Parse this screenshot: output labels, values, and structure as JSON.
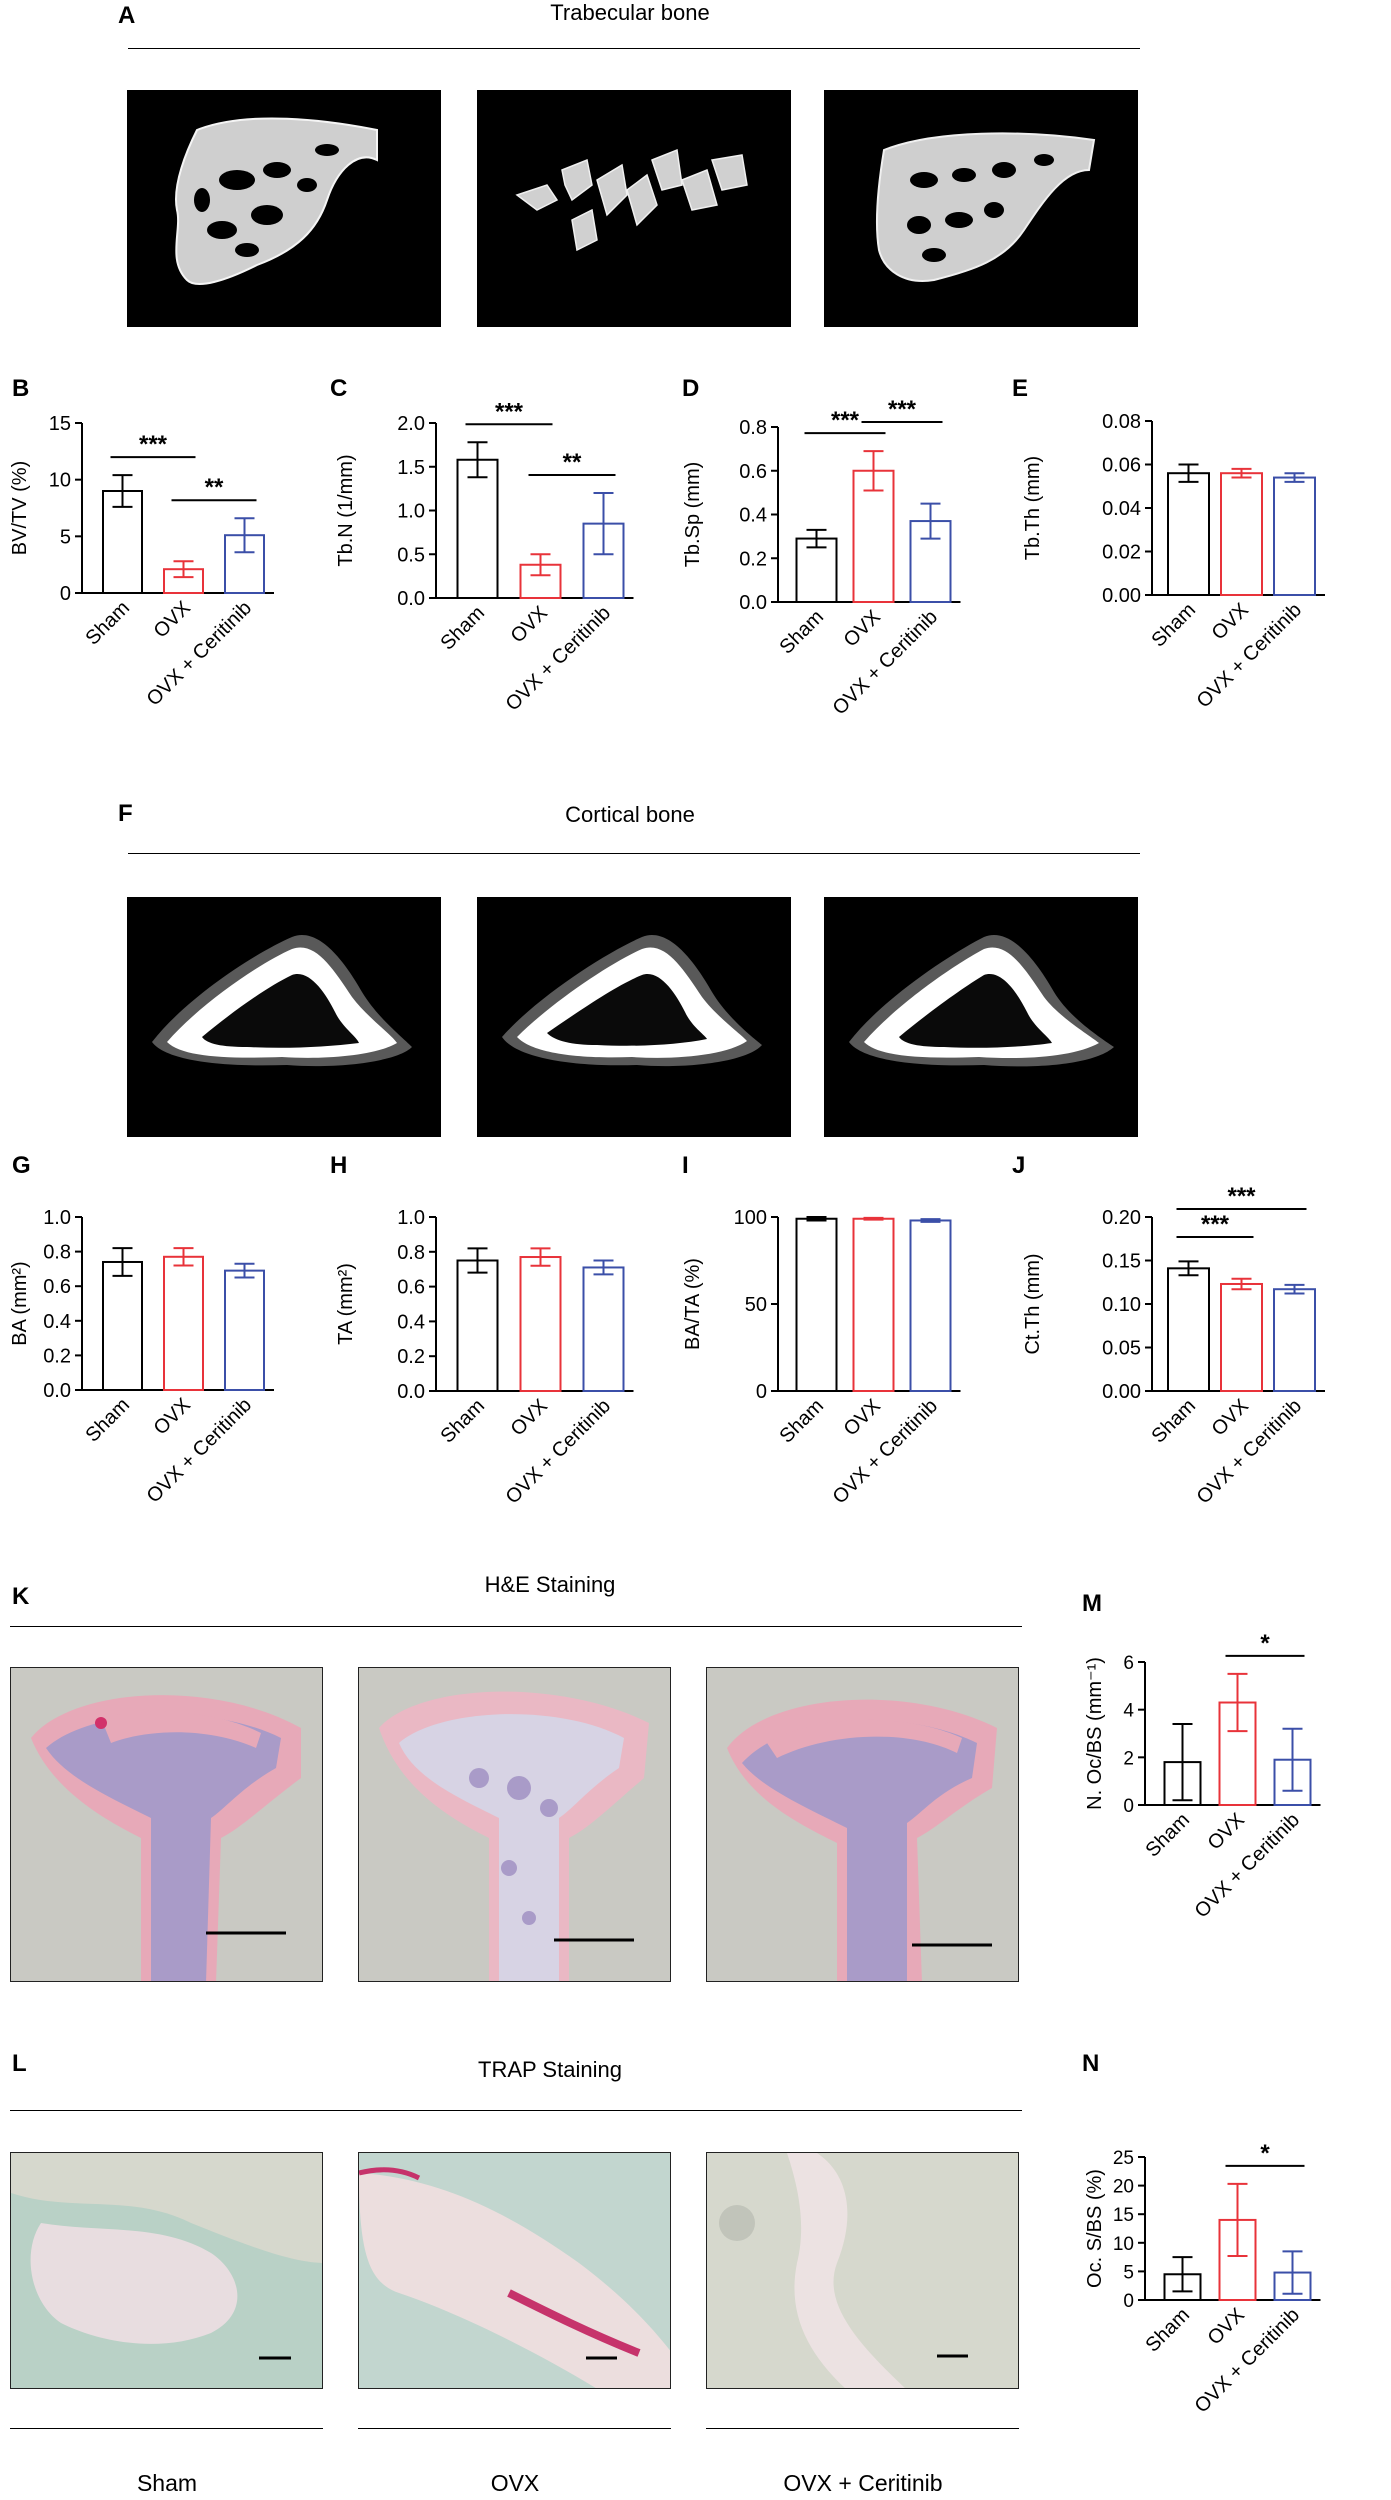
{
  "panels": {
    "A": "A",
    "B": "B",
    "C": "C",
    "D": "D",
    "E": "E",
    "F": "F",
    "G": "G",
    "H": "H",
    "I": "I",
    "J": "J",
    "K": "K",
    "L": "L",
    "M": "M",
    "N": "N"
  },
  "sections": {
    "trabecular": "Trabecular bone",
    "cortical": "Cortical bone",
    "he": "H&E Staining",
    "trap": "TRAP Staining"
  },
  "groups": [
    "Sham",
    "OVX",
    "OVX + Ceritinib"
  ],
  "colors": {
    "sham": "#000000",
    "ovx": "#e8333a",
    "ceritinib": "#3b4fa8"
  },
  "icons": {
    "trabecular_images": "micro-ct-trabecular-render",
    "cortical_images": "micro-ct-cortical-cross-section",
    "he_images": "he-stained-femur-section",
    "trap_images": "trap-stained-bone-section",
    "scale_bar": "scale-bar"
  },
  "chart_data": [
    {
      "id": "B",
      "type": "bar",
      "ylabel": "BV/TV (%)",
      "ylim": [
        0,
        15
      ],
      "yticks": [
        "0",
        "5",
        "10",
        "15"
      ],
      "categories": [
        "Sham",
        "OVX",
        "OVX + Ceritinib"
      ],
      "values": [
        9.0,
        2.1,
        5.1
      ],
      "errors": [
        1.4,
        0.7,
        1.5
      ],
      "significance": [
        {
          "from": 0,
          "to": 1,
          "label": "***"
        },
        {
          "from": 1,
          "to": 2,
          "label": "**"
        }
      ]
    },
    {
      "id": "C",
      "type": "bar",
      "ylabel": "Tb.N (1/mm)",
      "ylim": [
        0,
        2.0
      ],
      "yticks": [
        "0.0",
        "0.5",
        "1.0",
        "1.5",
        "2.0"
      ],
      "categories": [
        "Sham",
        "OVX",
        "OVX + Ceritinib"
      ],
      "values": [
        1.58,
        0.38,
        0.85
      ],
      "errors": [
        0.2,
        0.12,
        0.35
      ],
      "significance": [
        {
          "from": 0,
          "to": 1,
          "label": "***"
        },
        {
          "from": 1,
          "to": 2,
          "label": "**"
        }
      ]
    },
    {
      "id": "D",
      "type": "bar",
      "ylabel": "Tb.Sp (mm)",
      "ylim": [
        0,
        0.8
      ],
      "yticks": [
        "0.0",
        "0.2",
        "0.4",
        "0.6",
        "0.8"
      ],
      "categories": [
        "Sham",
        "OVX",
        "OVX + Ceritinib"
      ],
      "values": [
        0.29,
        0.6,
        0.37
      ],
      "errors": [
        0.04,
        0.09,
        0.08
      ],
      "significance": [
        {
          "from": 0,
          "to": 1,
          "label": "***"
        },
        {
          "from": 1,
          "to": 2,
          "label": "***"
        }
      ]
    },
    {
      "id": "E",
      "type": "bar",
      "ylabel": "Tb.Th (mm)",
      "ylim": [
        0,
        0.08
      ],
      "yticks": [
        "0.00",
        "0.02",
        "0.04",
        "0.06",
        "0.08"
      ],
      "categories": [
        "Sham",
        "OVX",
        "OVX + Ceritinib"
      ],
      "values": [
        0.056,
        0.056,
        0.054
      ],
      "errors": [
        0.004,
        0.002,
        0.002
      ],
      "significance": []
    },
    {
      "id": "G",
      "type": "bar",
      "ylabel": "BA (mm²)",
      "ylim": [
        0,
        1.0
      ],
      "yticks": [
        "0.0",
        "0.2",
        "0.4",
        "0.6",
        "0.8",
        "1.0"
      ],
      "categories": [
        "Sham",
        "OVX",
        "OVX + Ceritinib"
      ],
      "values": [
        0.74,
        0.77,
        0.69
      ],
      "errors": [
        0.08,
        0.05,
        0.04
      ],
      "significance": []
    },
    {
      "id": "H",
      "type": "bar",
      "ylabel": "TA (mm²)",
      "ylim": [
        0,
        1.0
      ],
      "yticks": [
        "0.0",
        "0.2",
        "0.4",
        "0.6",
        "0.8",
        "1.0"
      ],
      "categories": [
        "Sham",
        "OVX",
        "OVX + Ceritinib"
      ],
      "values": [
        0.75,
        0.77,
        0.71
      ],
      "errors": [
        0.07,
        0.05,
        0.04
      ],
      "significance": []
    },
    {
      "id": "I",
      "type": "bar",
      "ylabel": "BA/TA (%)",
      "ylim": [
        0,
        100
      ],
      "yticks": [
        "0",
        "50",
        "100"
      ],
      "categories": [
        "Sham",
        "OVX",
        "OVX + Ceritinib"
      ],
      "values": [
        99,
        99,
        98
      ],
      "errors": [
        1,
        0.5,
        0.8
      ],
      "significance": []
    },
    {
      "id": "J",
      "type": "bar",
      "ylabel": "Ct.Th (mm)",
      "ylim": [
        0,
        0.2
      ],
      "yticks": [
        "0.00",
        "0.05",
        "0.10",
        "0.15",
        "0.20"
      ],
      "categories": [
        "Sham",
        "OVX",
        "OVX + Ceritinib"
      ],
      "values": [
        0.141,
        0.123,
        0.117
      ],
      "errors": [
        0.008,
        0.006,
        0.005
      ],
      "significance": [
        {
          "from": 0,
          "to": 1,
          "label": "***"
        },
        {
          "from": 0,
          "to": 2,
          "label": "***"
        }
      ]
    },
    {
      "id": "M",
      "type": "bar",
      "ylabel": "N. Oc/BS (mm⁻¹)",
      "ylim": [
        0,
        6
      ],
      "yticks": [
        "0",
        "2",
        "4",
        "6"
      ],
      "categories": [
        "Sham",
        "OVX",
        "OVX + Ceritinib"
      ],
      "values": [
        1.8,
        4.3,
        1.9
      ],
      "errors": [
        1.6,
        1.2,
        1.3
      ],
      "significance": [
        {
          "from": 1,
          "to": 2,
          "label": "*"
        }
      ]
    },
    {
      "id": "N",
      "type": "bar",
      "ylabel": "Oc. S/BS (%)",
      "ylim": [
        0,
        25
      ],
      "yticks": [
        "0",
        "5",
        "10",
        "15",
        "20",
        "25"
      ],
      "categories": [
        "Sham",
        "OVX",
        "OVX + Ceritinib"
      ],
      "values": [
        4.5,
        14.0,
        4.8
      ],
      "errors": [
        3.0,
        6.3,
        3.7
      ],
      "significance": [
        {
          "from": 1,
          "to": 2,
          "label": "*"
        }
      ]
    }
  ]
}
